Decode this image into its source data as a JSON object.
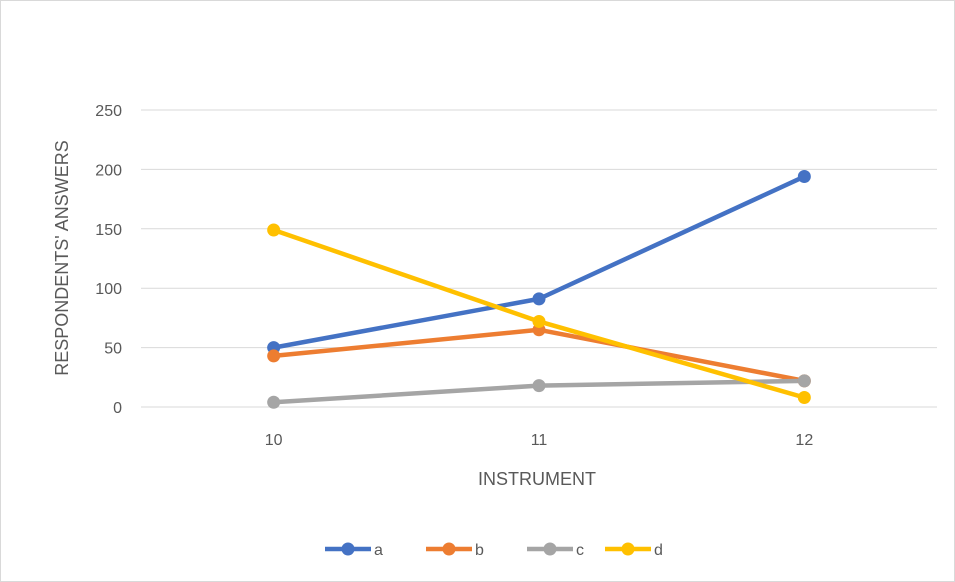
{
  "chart_data": {
    "type": "line",
    "title": "",
    "xlabel": "INSTRUMENT",
    "ylabel": "RESPONDENTS' ANSWERS",
    "categories": [
      "10",
      "11",
      "12"
    ],
    "y_ticks": [
      "0",
      "50",
      "100",
      "150",
      "200",
      "250"
    ],
    "ylim": [
      0,
      250
    ],
    "grid": true,
    "legend_position": "bottom",
    "series": [
      {
        "name": "a",
        "color": "#4472c4",
        "values": [
          50,
          91,
          194
        ]
      },
      {
        "name": "b",
        "color": "#ed7d31",
        "values": [
          43,
          65,
          22
        ]
      },
      {
        "name": "c",
        "color": "#a5a5a5",
        "values": [
          4,
          18,
          22
        ]
      },
      {
        "name": "d",
        "color": "#ffc000",
        "values": [
          149,
          72,
          8
        ]
      }
    ]
  }
}
